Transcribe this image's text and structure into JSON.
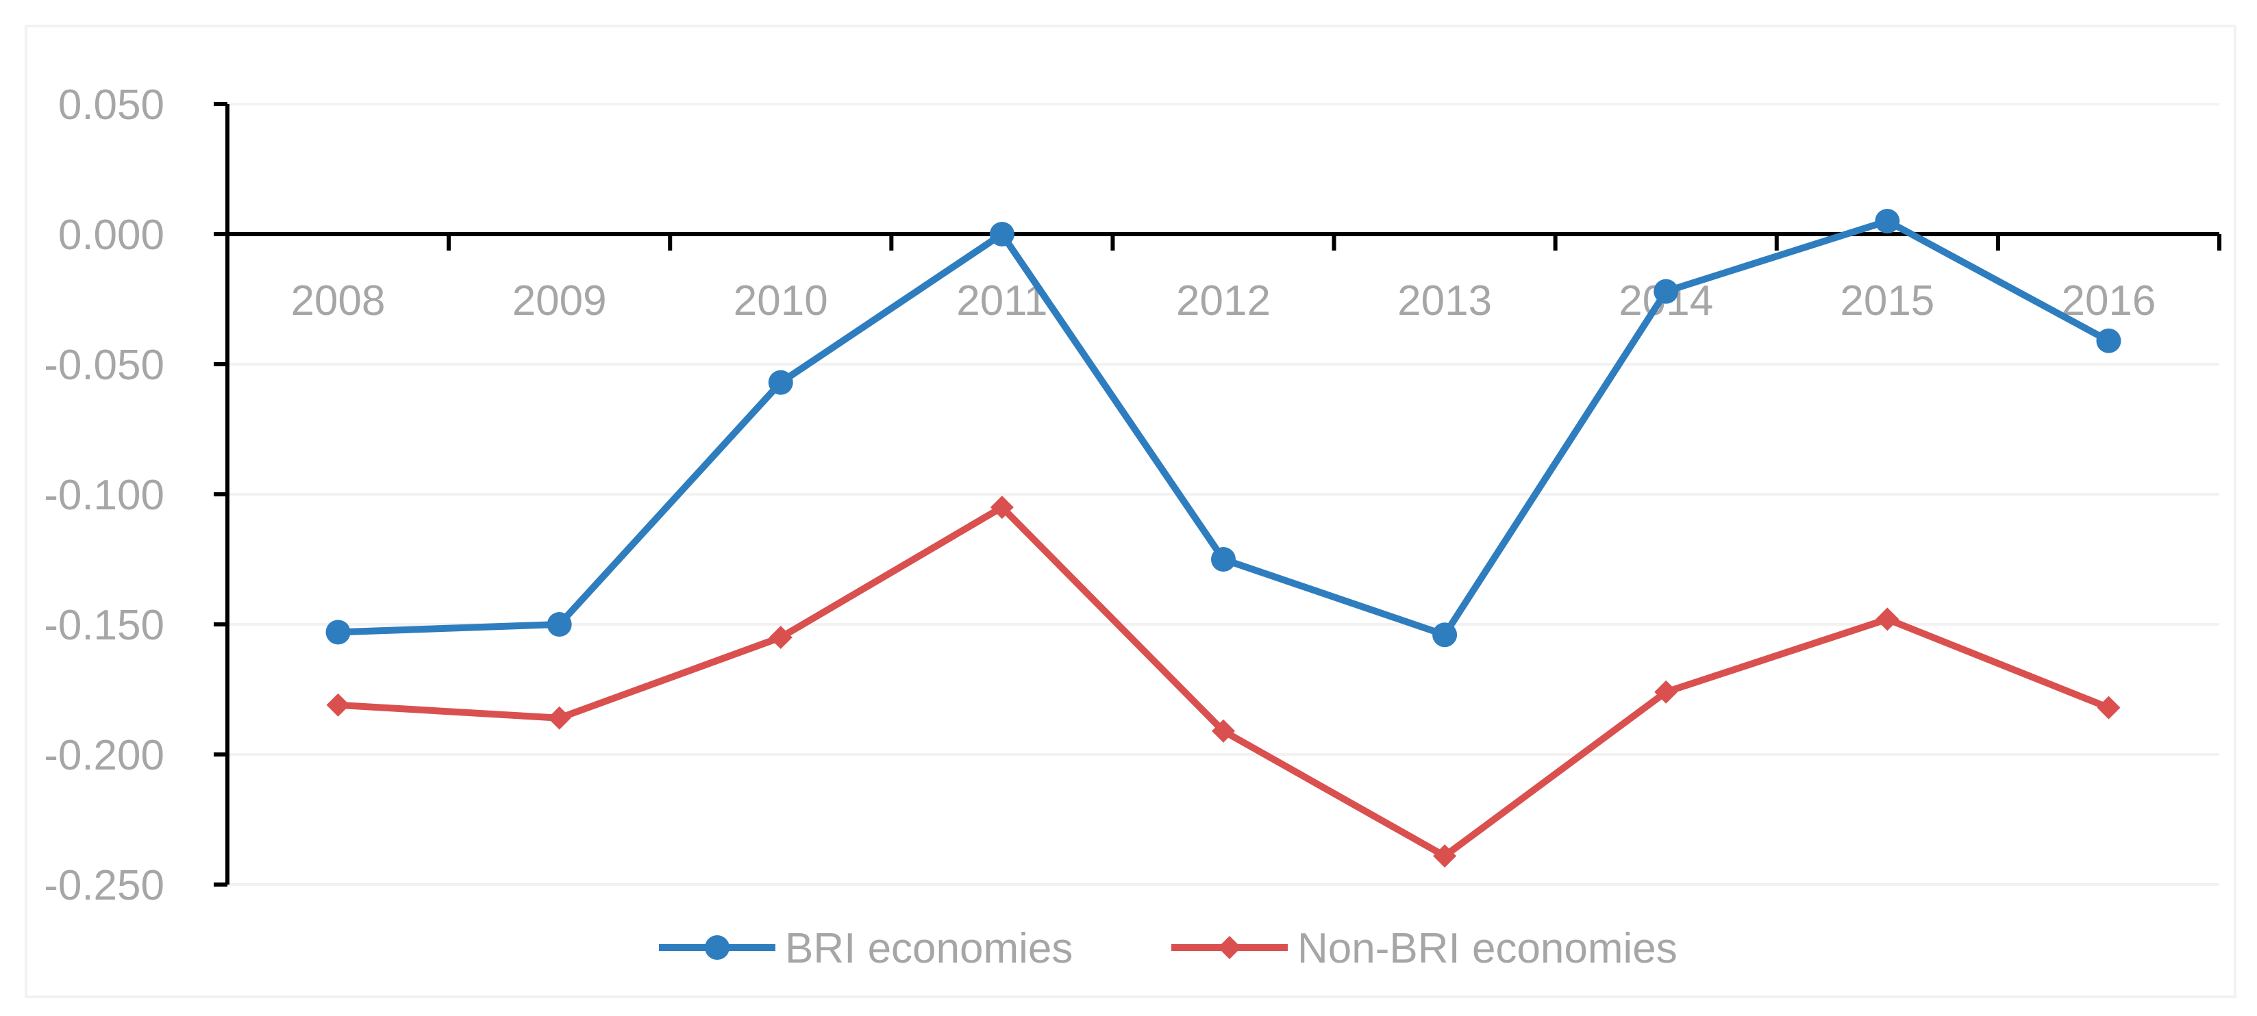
{
  "chart_data": {
    "type": "line",
    "title": "",
    "xlabel": "",
    "ylabel": "",
    "categories": [
      "2008",
      "2009",
      "2010",
      "2011",
      "2012",
      "2013",
      "2014",
      "2015",
      "2016"
    ],
    "y_ticks": [
      "0.050",
      "0.000",
      "-0.050",
      "-0.100",
      "-0.150",
      "-0.200",
      "-0.250"
    ],
    "ylim": [
      -0.25,
      0.05
    ],
    "grid": true,
    "legend_position": "bottom",
    "series": [
      {
        "name": "BRI economies",
        "color": "#2e7dbf",
        "marker": "circle",
        "values": [
          -0.153,
          -0.15,
          -0.057,
          0.0,
          -0.125,
          -0.154,
          -0.022,
          0.005,
          -0.041
        ]
      },
      {
        "name": "Non-BRI economies",
        "color": "#d9504f",
        "marker": "diamond",
        "values": [
          -0.181,
          -0.186,
          -0.155,
          -0.105,
          -0.191,
          -0.239,
          -0.176,
          -0.148,
          -0.182
        ]
      }
    ]
  }
}
